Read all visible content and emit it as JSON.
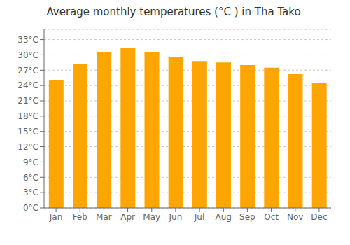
{
  "chart_data": {
    "type": "bar",
    "title": "Average monthly temperatures (°C ) in Tha Tako",
    "categories": [
      "Jan",
      "Feb",
      "Mar",
      "Apr",
      "May",
      "Jun",
      "Jul",
      "Aug",
      "Sep",
      "Oct",
      "Nov",
      "Dec"
    ],
    "values": [
      25.0,
      28.2,
      30.5,
      31.3,
      30.5,
      29.5,
      28.8,
      28.5,
      28.0,
      27.5,
      26.2,
      24.5
    ],
    "color": "#FFA500",
    "ylim": [
      0,
      35
    ],
    "yticks": [
      {
        "value": 0,
        "label": "0°C"
      },
      {
        "value": 3,
        "label": "3°C"
      },
      {
        "value": 6,
        "label": "6°C"
      },
      {
        "value": 9,
        "label": "9°C"
      },
      {
        "value": 12,
        "label": "12°C"
      },
      {
        "value": 15,
        "label": "15°C"
      },
      {
        "value": 18,
        "label": "18°C"
      },
      {
        "value": 21,
        "label": "21°C"
      },
      {
        "value": 24,
        "label": "24°C"
      },
      {
        "value": 27,
        "label": "27°C"
      },
      {
        "value": 30,
        "label": "30°C"
      },
      {
        "value": 33,
        "label": "33°C"
      }
    ],
    "grid": true
  }
}
